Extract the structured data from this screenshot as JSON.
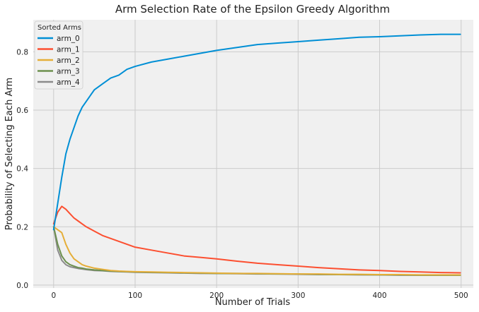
{
  "chart_data": {
    "type": "line",
    "title": "Arm Selection Rate of the Epsilon Greedy Algorithm",
    "xlabel": "Number of Trials",
    "ylabel": "Probability of Selecting Each Arm",
    "xlim": [
      -25,
      515
    ],
    "ylim": [
      -0.01,
      0.91
    ],
    "xticks": [
      0,
      100,
      200,
      300,
      400,
      500
    ],
    "yticks": [
      0.0,
      0.2,
      0.4,
      0.6,
      0.8
    ],
    "grid": true,
    "background": "#f0f0f0",
    "legend": {
      "title": "Sorted Arms",
      "placement": "upper-left"
    },
    "x": [
      0,
      5,
      10,
      15,
      20,
      25,
      30,
      35,
      40,
      50,
      60,
      70,
      80,
      90,
      100,
      120,
      140,
      160,
      180,
      200,
      225,
      250,
      275,
      300,
      325,
      350,
      375,
      400,
      425,
      450,
      475,
      499
    ],
    "series": [
      {
        "name": "arm_0",
        "color": "#008fd5",
        "values": [
          0.19,
          0.28,
          0.37,
          0.45,
          0.5,
          0.54,
          0.58,
          0.61,
          0.63,
          0.67,
          0.69,
          0.71,
          0.72,
          0.74,
          0.75,
          0.765,
          0.775,
          0.785,
          0.795,
          0.805,
          0.815,
          0.825,
          0.83,
          0.835,
          0.84,
          0.845,
          0.85,
          0.852,
          0.855,
          0.858,
          0.86,
          0.86
        ]
      },
      {
        "name": "arm_1",
        "color": "#fc4f30",
        "values": [
          0.21,
          0.25,
          0.27,
          0.26,
          0.245,
          0.23,
          0.22,
          0.21,
          0.2,
          0.185,
          0.17,
          0.16,
          0.15,
          0.14,
          0.13,
          0.12,
          0.11,
          0.1,
          0.095,
          0.09,
          0.082,
          0.075,
          0.07,
          0.065,
          0.06,
          0.056,
          0.052,
          0.05,
          0.047,
          0.045,
          0.043,
          0.042
        ]
      },
      {
        "name": "arm_2",
        "color": "#e5ae38",
        "values": [
          0.2,
          0.19,
          0.18,
          0.14,
          0.11,
          0.09,
          0.08,
          0.07,
          0.065,
          0.058,
          0.054,
          0.05,
          0.048,
          0.047,
          0.046,
          0.045,
          0.044,
          0.043,
          0.042,
          0.041,
          0.04,
          0.04,
          0.039,
          0.038,
          0.038,
          0.037,
          0.037,
          0.036,
          0.036,
          0.035,
          0.035,
          0.035
        ]
      },
      {
        "name": "arm_3",
        "color": "#6d904f",
        "values": [
          0.2,
          0.14,
          0.1,
          0.08,
          0.07,
          0.065,
          0.06,
          0.058,
          0.055,
          0.052,
          0.05,
          0.048,
          0.047,
          0.046,
          0.045,
          0.044,
          0.043,
          0.042,
          0.041,
          0.04,
          0.04,
          0.039,
          0.038,
          0.038,
          0.037,
          0.036,
          0.036,
          0.035,
          0.035,
          0.034,
          0.034,
          0.034
        ]
      },
      {
        "name": "arm_4",
        "color": "#8b8b8b",
        "values": [
          0.2,
          0.12,
          0.085,
          0.07,
          0.063,
          0.06,
          0.057,
          0.055,
          0.053,
          0.05,
          0.049,
          0.047,
          0.046,
          0.045,
          0.044,
          0.043,
          0.042,
          0.041,
          0.04,
          0.04,
          0.039,
          0.038,
          0.038,
          0.037,
          0.036,
          0.036,
          0.035,
          0.035,
          0.034,
          0.034,
          0.034,
          0.034
        ]
      }
    ]
  }
}
